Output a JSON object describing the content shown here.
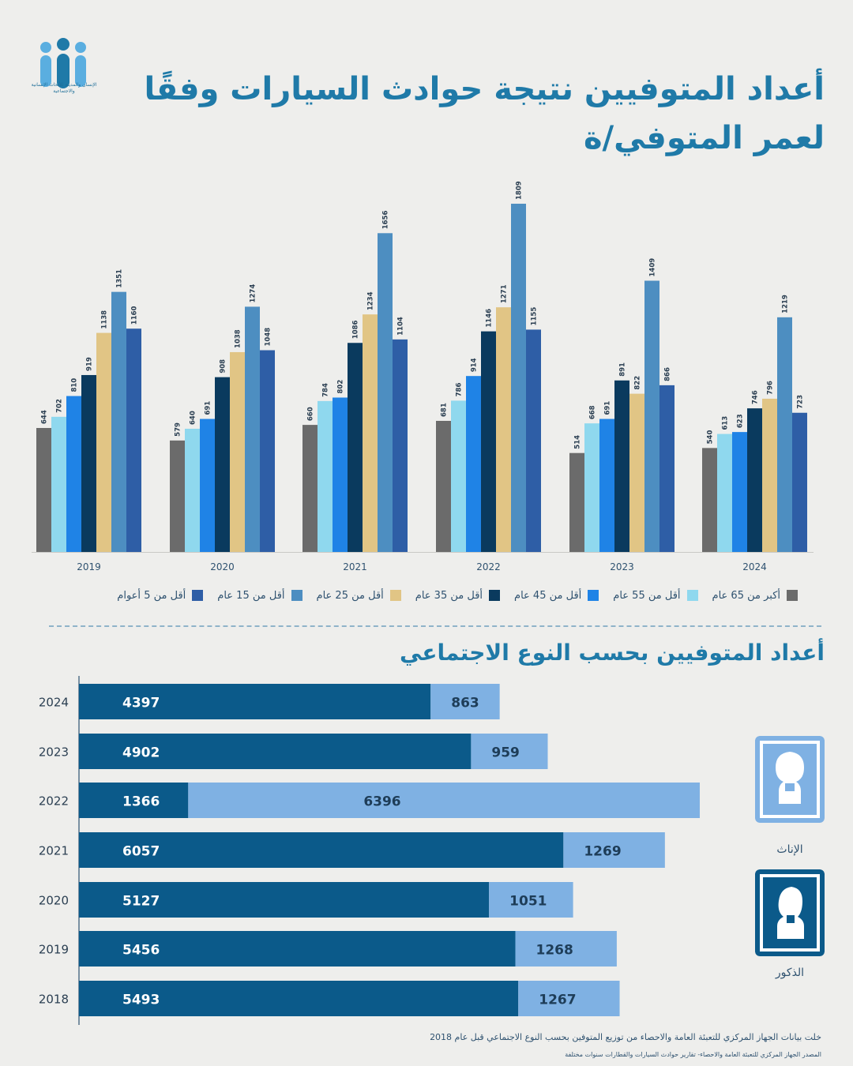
{
  "header": {
    "logo_text": "الإنسان والمدينة للأبحاث الإنسانية والاجتماعية",
    "title": "أعداد المتوفيين نتيجة حوادث السيارات وفقًا لعمر المتوفي/ة"
  },
  "colors": {
    "background": "#eeeeec",
    "title": "#1f7aa8",
    "male": "#0b5a8a",
    "female": "#7fb1e3"
  },
  "chart_data": [
    {
      "type": "bar",
      "categories": [
        "2019",
        "2020",
        "2021",
        "2022",
        "2023",
        "2024"
      ],
      "series": [
        {
          "name": "أكبر من 65 عام",
          "color": "#6b6b6b",
          "values": [
            644,
            579,
            660,
            681,
            514,
            540
          ]
        },
        {
          "name": "أقل من 55 عام",
          "color": "#8fd8ee",
          "values": [
            702,
            640,
            784,
            786,
            668,
            613
          ]
        },
        {
          "name": "أقل من 45 عام",
          "color": "#1f83e6",
          "values": [
            810,
            691,
            802,
            914,
            691,
            623
          ]
        },
        {
          "name": "أقل من 35 عام",
          "color": "#0a3a5e",
          "values": [
            919,
            908,
            1086,
            1146,
            891,
            746
          ]
        },
        {
          "name": "أقل من 25 عام",
          "color": "#e1c585",
          "values": [
            1138,
            1038,
            1234,
            1271,
            822,
            796
          ]
        },
        {
          "name": "أقل من 15 عام",
          "color": "#4d8ec1",
          "values": [
            1351,
            1274,
            1656,
            1809,
            1409,
            1219
          ]
        },
        {
          "name": "أقل من 5 أعوام",
          "color": "#2e5ea6",
          "values": [
            1160,
            1048,
            1104,
            1155,
            866,
            723
          ]
        }
      ],
      "legend_labels": [
        "أكبر من 65 عام",
        "أقل من 55 عام",
        "أقل من 45 عام",
        "أقل من 35 عام",
        "أقل من 25 عام",
        "أقل من 15 عام",
        "أقل من 5 أعوام"
      ],
      "legend_position": "bottom",
      "title": "",
      "xlabel": "",
      "ylabel": "",
      "ylim": [
        0,
        1850
      ],
      "grid": false
    },
    {
      "type": "bar",
      "orientation": "horizontal",
      "stacked": true,
      "title": "أعداد المتوفيين بحسب النوع الاجتماعي",
      "categories": [
        "2024",
        "2023",
        "2022",
        "2021",
        "2020",
        "2019",
        "2018"
      ],
      "series": [
        {
          "name": "الذكور",
          "color": "#0b5a8a",
          "values": [
            4397,
            4902,
            1366,
            6057,
            5127,
            5456,
            5493
          ]
        },
        {
          "name": "الإناث",
          "color": "#7fb1e3",
          "values": [
            863,
            959,
            6396,
            1269,
            1051,
            1268,
            1267
          ]
        }
      ],
      "grid": false
    }
  ],
  "legend2": {
    "female_label": "الإناث",
    "male_label": "الذكور"
  },
  "footer": {
    "note": "خلت بيانات الجهاز المركزي للتعبئة العامة والاحصاء من توزيع المتوفين بحسب النوع الاجتماعي قبل عام 2018",
    "source": "المصدر الجهاز المركزي للتعبئة العامة والاحصاء- تقارير حوادث السيارات والقطارات سنوات مختلفة"
  }
}
